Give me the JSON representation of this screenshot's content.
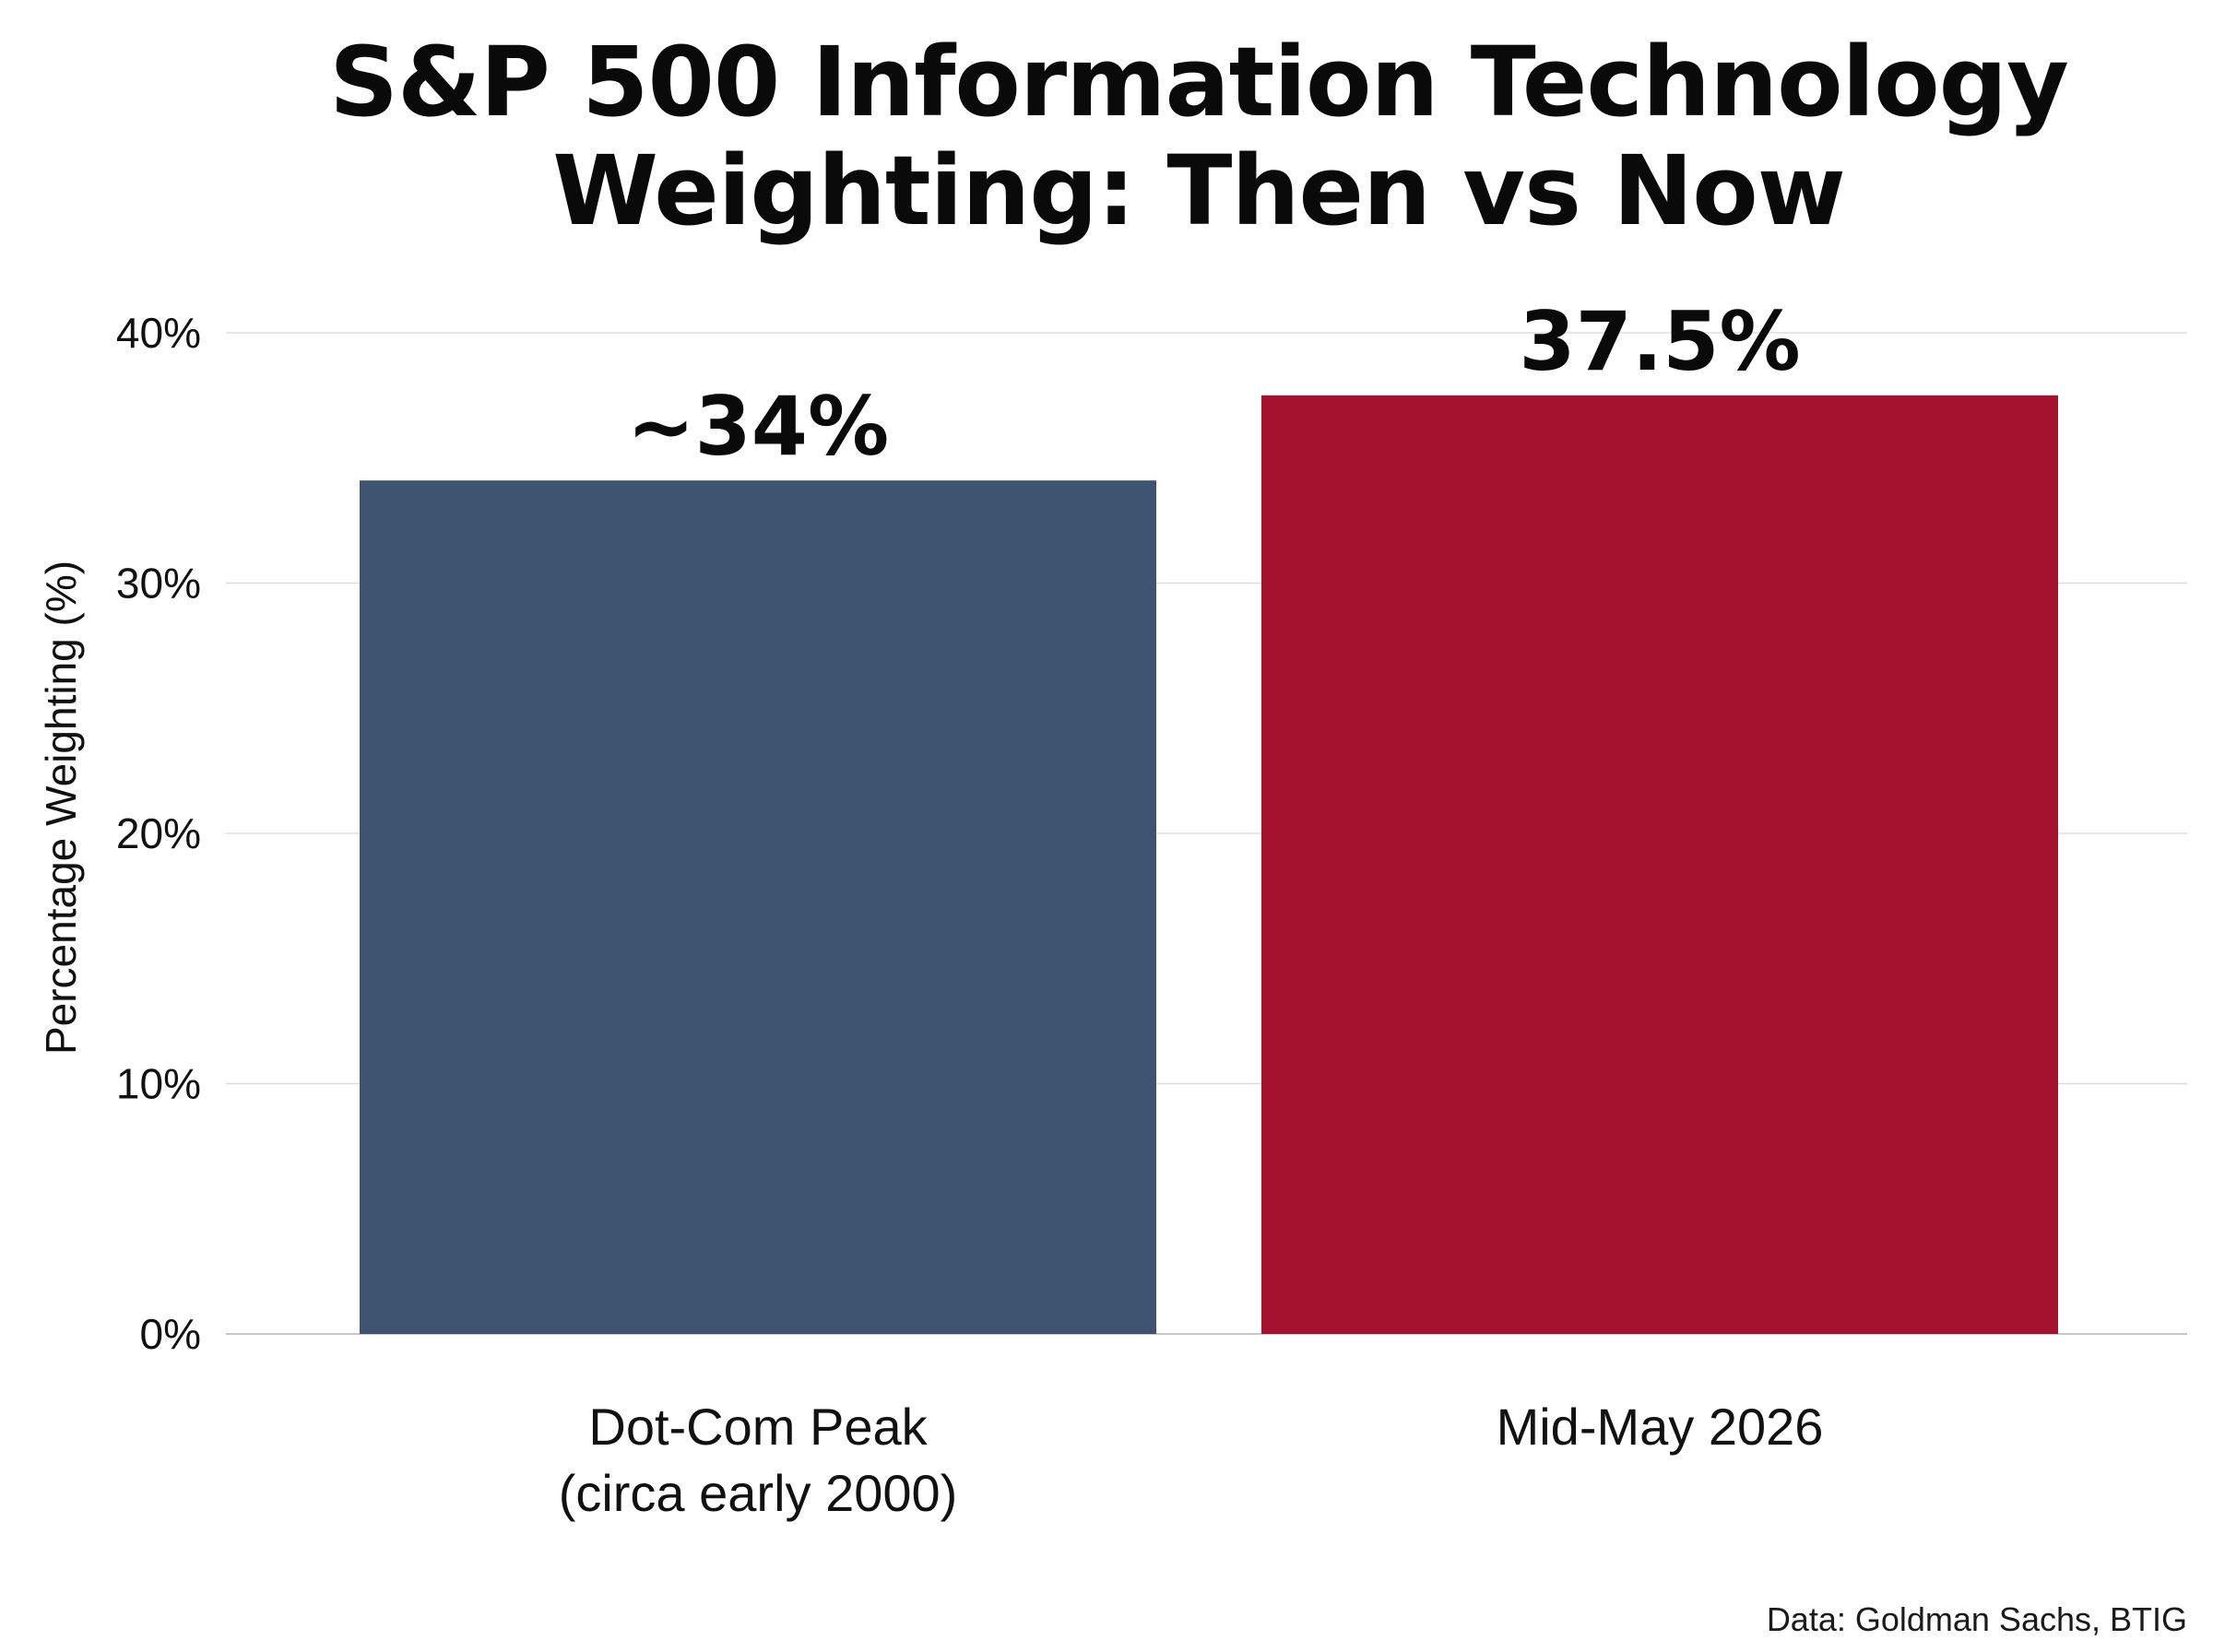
{
  "chart_data": {
    "type": "bar",
    "title_lines": [
      "S&P 500 Information Technology",
      "Weighting: Then vs Now"
    ],
    "ylabel": "Percentage Weighting (%)",
    "xlabel": "",
    "ylim": [
      0,
      40
    ],
    "yticks": [
      0,
      10,
      20,
      30,
      40
    ],
    "ytick_labels": [
      "0%",
      "10%",
      "20%",
      "30%",
      "40%"
    ],
    "grid": true,
    "categories": [
      [
        "Dot-Com Peak",
        "(circa early 2000)"
      ],
      [
        "Mid-May 2026"
      ]
    ],
    "values": [
      34.1,
      37.5
    ],
    "data_labels": [
      "~34%",
      "37.5%"
    ],
    "colors": [
      "#3e5471",
      "#a41230"
    ]
  },
  "source": "Data: Goldman Sachs, BTIG"
}
